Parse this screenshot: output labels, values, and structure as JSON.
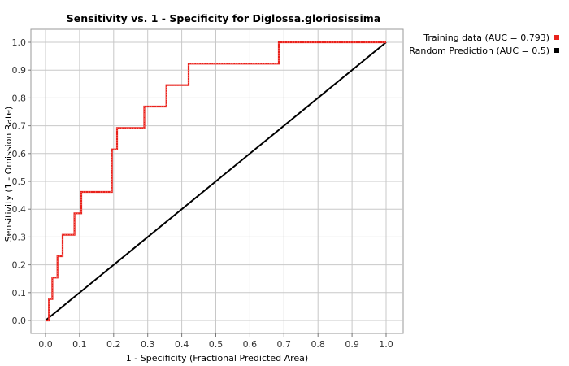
{
  "chart_data": {
    "type": "line",
    "title": "Sensitivity vs. 1 - Specificity for Diglossa.gloriosissima",
    "xlabel": "1 - Specificity  (Fractional Predicted Area)",
    "ylabel": "Sensitivity  (1 - Omission Rate)",
    "xlim": [
      0,
      1
    ],
    "ylim": [
      0,
      1
    ],
    "x_ticks": [
      "0.0",
      "0.1",
      "0.2",
      "0.3",
      "0.4",
      "0.5",
      "0.6",
      "0.7",
      "0.8",
      "0.9",
      "1.0"
    ],
    "y_ticks": [
      "0.0",
      "0.1",
      "0.2",
      "0.3",
      "0.4",
      "0.5",
      "0.6",
      "0.7",
      "0.8",
      "0.9",
      "1.0"
    ],
    "grid": true,
    "legend_position": "top-right",
    "series": [
      {
        "name": "Training data (AUC = 0.793)",
        "color": "#e8221c",
        "step": true,
        "points": [
          [
            0.0,
            0.0
          ],
          [
            0.01,
            0.0
          ],
          [
            0.01,
            0.077
          ],
          [
            0.02,
            0.077
          ],
          [
            0.02,
            0.154
          ],
          [
            0.035,
            0.154
          ],
          [
            0.035,
            0.231
          ],
          [
            0.05,
            0.231
          ],
          [
            0.05,
            0.308
          ],
          [
            0.085,
            0.308
          ],
          [
            0.085,
            0.385
          ],
          [
            0.105,
            0.385
          ],
          [
            0.105,
            0.462
          ],
          [
            0.195,
            0.462
          ],
          [
            0.195,
            0.615
          ],
          [
            0.21,
            0.615
          ],
          [
            0.21,
            0.692
          ],
          [
            0.29,
            0.692
          ],
          [
            0.29,
            0.769
          ],
          [
            0.355,
            0.769
          ],
          [
            0.355,
            0.846
          ],
          [
            0.42,
            0.846
          ],
          [
            0.42,
            0.923
          ],
          [
            0.685,
            0.923
          ],
          [
            0.685,
            1.0
          ],
          [
            1.0,
            1.0
          ]
        ]
      },
      {
        "name": "Random Prediction (AUC = 0.5)",
        "color": "#000000",
        "step": false,
        "points": [
          [
            0.0,
            0.0
          ],
          [
            1.0,
            1.0
          ]
        ]
      }
    ]
  }
}
